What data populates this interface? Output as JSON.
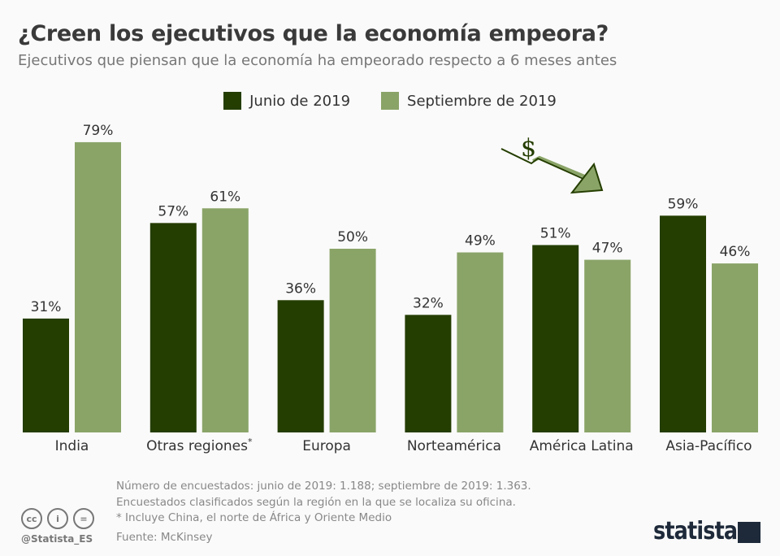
{
  "title": "¿Creen los ejecutivos que la economía empeora?",
  "subtitle": "Ejecutivos que piensan que la economía ha empeorado respecto a 6 meses antes",
  "chart_data": {
    "type": "bar",
    "categories": [
      "India",
      "Otras regiones",
      "Europa",
      "Norteamérica",
      "América Latina",
      "Asia-Pacífico"
    ],
    "category_footnote_marker": "*",
    "series": [
      {
        "name": "Junio de 2019",
        "color": "#243d00",
        "values": [
          31,
          57,
          36,
          32,
          51,
          59
        ]
      },
      {
        "name": "Septiembre de 2019",
        "color": "#8aa468",
        "values": [
          79,
          61,
          50,
          49,
          47,
          46
        ]
      }
    ],
    "value_suffix": "%",
    "ylim": [
      0,
      100
    ],
    "grid": false,
    "legend_position": "top"
  },
  "footer": {
    "notes": [
      "Número de encuestados: junio de 2019: 1.188; septiembre de 2019: 1.363.",
      "Encuestados clasificados según la región en la que se localiza su oficina.",
      "* Incluye China, el norte de África y Oriente Medio"
    ],
    "source": "Fuente: McKinsey",
    "handle": "@Statista_ES",
    "license_icons": [
      "cc",
      "i",
      "="
    ],
    "logo": "statista"
  },
  "illustration": {
    "symbol": "$",
    "icon": "falling-dollar-arrow-icon"
  }
}
